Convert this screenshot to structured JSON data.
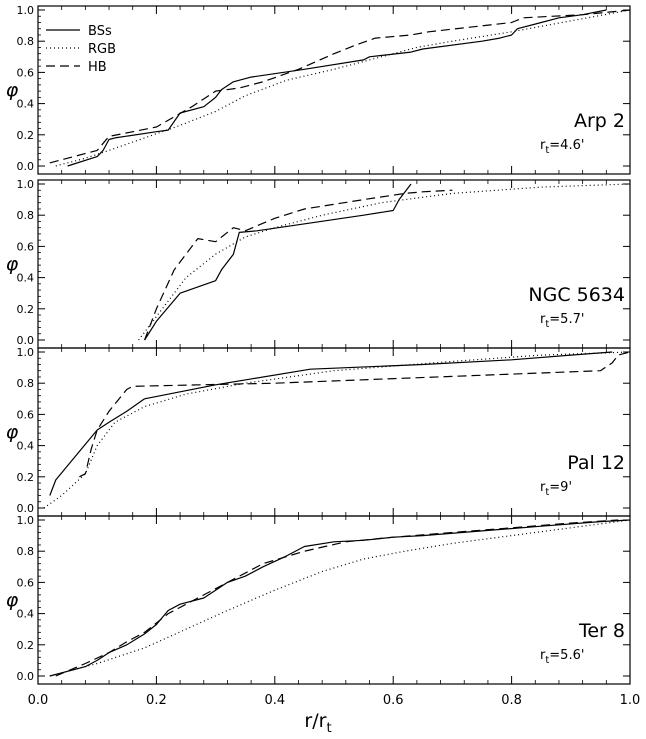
{
  "legend": [
    {
      "label": "BSs",
      "style": "solid"
    },
    {
      "label": "RGB",
      "style": "dotted"
    },
    {
      "label": "HB",
      "style": "dashed"
    }
  ],
  "ylabel": "φ",
  "xlabel": {
    "main": "r/r",
    "sub": "t"
  },
  "xticks": [
    "0.0",
    "0.2",
    "0.4",
    "0.6",
    "0.8",
    "1.0"
  ],
  "yticks": [
    "0.0",
    "0.2",
    "0.4",
    "0.6",
    "0.8",
    "1.0"
  ],
  "chart_data": [
    {
      "type": "line",
      "name": "Arp 2",
      "rt_label": "=4.6'",
      "xlim": [
        0,
        1
      ],
      "ylim": [
        0,
        1
      ],
      "series": [
        {
          "name": "BSs",
          "style": "solid",
          "x": [
            0.05,
            0.1,
            0.11,
            0.12,
            0.13,
            0.2,
            0.22,
            0.24,
            0.28,
            0.3,
            0.31,
            0.33,
            0.36,
            0.45,
            0.55,
            0.56,
            0.63,
            0.65,
            0.75,
            0.78,
            0.8,
            0.81,
            0.85,
            0.88,
            0.92,
            0.96
          ],
          "y": [
            0.0,
            0.06,
            0.1,
            0.17,
            0.18,
            0.22,
            0.23,
            0.34,
            0.38,
            0.44,
            0.49,
            0.54,
            0.57,
            0.62,
            0.68,
            0.7,
            0.73,
            0.75,
            0.8,
            0.82,
            0.84,
            0.88,
            0.92,
            0.95,
            0.97,
            1.0
          ]
        },
        {
          "name": "RGB",
          "style": "dotted",
          "x": [
            0.03,
            0.08,
            0.12,
            0.18,
            0.24,
            0.3,
            0.35,
            0.42,
            0.5,
            0.58,
            0.64,
            0.7,
            0.8,
            0.9,
            1.0
          ],
          "y": [
            0.0,
            0.05,
            0.1,
            0.18,
            0.26,
            0.35,
            0.45,
            0.55,
            0.62,
            0.7,
            0.76,
            0.8,
            0.86,
            0.93,
            1.0
          ]
        },
        {
          "name": "HB",
          "style": "dashed",
          "x": [
            0.02,
            0.1,
            0.12,
            0.2,
            0.26,
            0.3,
            0.34,
            0.38,
            0.44,
            0.5,
            0.54,
            0.57,
            0.63,
            0.66,
            0.8,
            0.82,
            0.92,
            1.0
          ],
          "y": [
            0.02,
            0.1,
            0.19,
            0.25,
            0.38,
            0.48,
            0.5,
            0.54,
            0.62,
            0.72,
            0.78,
            0.82,
            0.84,
            0.86,
            0.92,
            0.95,
            0.97,
            1.0
          ]
        }
      ]
    },
    {
      "type": "line",
      "name": "NGC 5634",
      "rt_label": "=5.7'",
      "xlim": [
        0,
        1
      ],
      "ylim": [
        0,
        1
      ],
      "series": [
        {
          "name": "BSs",
          "style": "solid",
          "x": [
            0.18,
            0.2,
            0.24,
            0.3,
            0.31,
            0.33,
            0.34,
            0.37,
            0.55,
            0.6,
            0.61,
            0.63
          ],
          "y": [
            0.0,
            0.12,
            0.3,
            0.38,
            0.45,
            0.55,
            0.69,
            0.7,
            0.8,
            0.83,
            0.9,
            1.0
          ]
        },
        {
          "name": "RGB",
          "style": "dotted",
          "x": [
            0.17,
            0.2,
            0.25,
            0.3,
            0.35,
            0.4,
            0.48,
            0.58,
            0.7,
            0.85,
            1.0
          ],
          "y": [
            0.0,
            0.15,
            0.4,
            0.55,
            0.66,
            0.72,
            0.8,
            0.88,
            0.94,
            0.98,
            1.0
          ]
        },
        {
          "name": "HB",
          "style": "dashed",
          "x": [
            0.18,
            0.2,
            0.23,
            0.25,
            0.27,
            0.3,
            0.33,
            0.35,
            0.4,
            0.45,
            0.55,
            0.62,
            0.65,
            0.7
          ],
          "y": [
            0.0,
            0.2,
            0.45,
            0.55,
            0.65,
            0.63,
            0.72,
            0.7,
            0.78,
            0.84,
            0.9,
            0.94,
            0.95,
            0.96
          ]
        }
      ]
    },
    {
      "type": "line",
      "name": "Pal 12",
      "rt_label": "=9'",
      "xlim": [
        0,
        1
      ],
      "ylim": [
        0,
        1
      ],
      "series": [
        {
          "name": "BSs",
          "style": "solid",
          "x": [
            0.02,
            0.03,
            0.1,
            0.12,
            0.15,
            0.18,
            0.3,
            0.46,
            0.65,
            0.8,
            0.9,
            0.97
          ],
          "y": [
            0.08,
            0.18,
            0.5,
            0.55,
            0.62,
            0.7,
            0.79,
            0.89,
            0.92,
            0.95,
            0.98,
            1.0
          ]
        },
        {
          "name": "RGB",
          "style": "dotted",
          "x": [
            0.01,
            0.04,
            0.08,
            0.1,
            0.13,
            0.18,
            0.25,
            0.35,
            0.5,
            0.7,
            0.85,
            1.0
          ],
          "y": [
            0.0,
            0.08,
            0.22,
            0.4,
            0.55,
            0.65,
            0.73,
            0.8,
            0.88,
            0.94,
            0.98,
            1.0
          ]
        },
        {
          "name": "HB",
          "style": "dashed",
          "x": [
            0.07,
            0.08,
            0.09,
            0.1,
            0.12,
            0.15,
            0.16,
            0.4,
            0.95,
            0.97,
            0.98,
            1.0
          ],
          "y": [
            0.2,
            0.22,
            0.38,
            0.5,
            0.62,
            0.76,
            0.78,
            0.8,
            0.88,
            0.93,
            0.98,
            1.0
          ]
        }
      ]
    },
    {
      "type": "line",
      "name": "Ter 8",
      "rt_label": "=5.6'",
      "xlim": [
        0,
        1
      ],
      "ylim": [
        0,
        1
      ],
      "series": [
        {
          "name": "BSs",
          "style": "solid",
          "x": [
            0.02,
            0.05,
            0.08,
            0.1,
            0.12,
            0.15,
            0.18,
            0.2,
            0.22,
            0.24,
            0.28,
            0.3,
            0.32,
            0.35,
            0.38,
            0.42,
            0.45,
            0.5,
            0.55,
            0.6,
            0.65,
            0.75,
            0.85,
            0.95,
            1.0
          ],
          "y": [
            0.0,
            0.03,
            0.06,
            0.1,
            0.15,
            0.2,
            0.27,
            0.33,
            0.42,
            0.46,
            0.5,
            0.55,
            0.6,
            0.64,
            0.7,
            0.77,
            0.83,
            0.86,
            0.87,
            0.89,
            0.9,
            0.93,
            0.96,
            0.99,
            1.0
          ]
        },
        {
          "name": "RGB",
          "style": "dotted",
          "x": [
            0.02,
            0.1,
            0.18,
            0.25,
            0.32,
            0.4,
            0.48,
            0.55,
            0.62,
            0.7,
            0.8,
            0.9,
            1.0
          ],
          "y": [
            0.0,
            0.08,
            0.18,
            0.3,
            0.42,
            0.55,
            0.67,
            0.75,
            0.8,
            0.85,
            0.9,
            0.95,
            1.0
          ]
        },
        {
          "name": "HB",
          "style": "dashed",
          "x": [
            0.03,
            0.08,
            0.12,
            0.15,
            0.18,
            0.22,
            0.28,
            0.33,
            0.38,
            0.45,
            0.52,
            0.6,
            0.7,
            0.8,
            0.9,
            0.98
          ],
          "y": [
            0.0,
            0.08,
            0.15,
            0.22,
            0.28,
            0.4,
            0.52,
            0.62,
            0.72,
            0.8,
            0.86,
            0.89,
            0.92,
            0.95,
            0.98,
            1.0
          ]
        }
      ]
    }
  ]
}
